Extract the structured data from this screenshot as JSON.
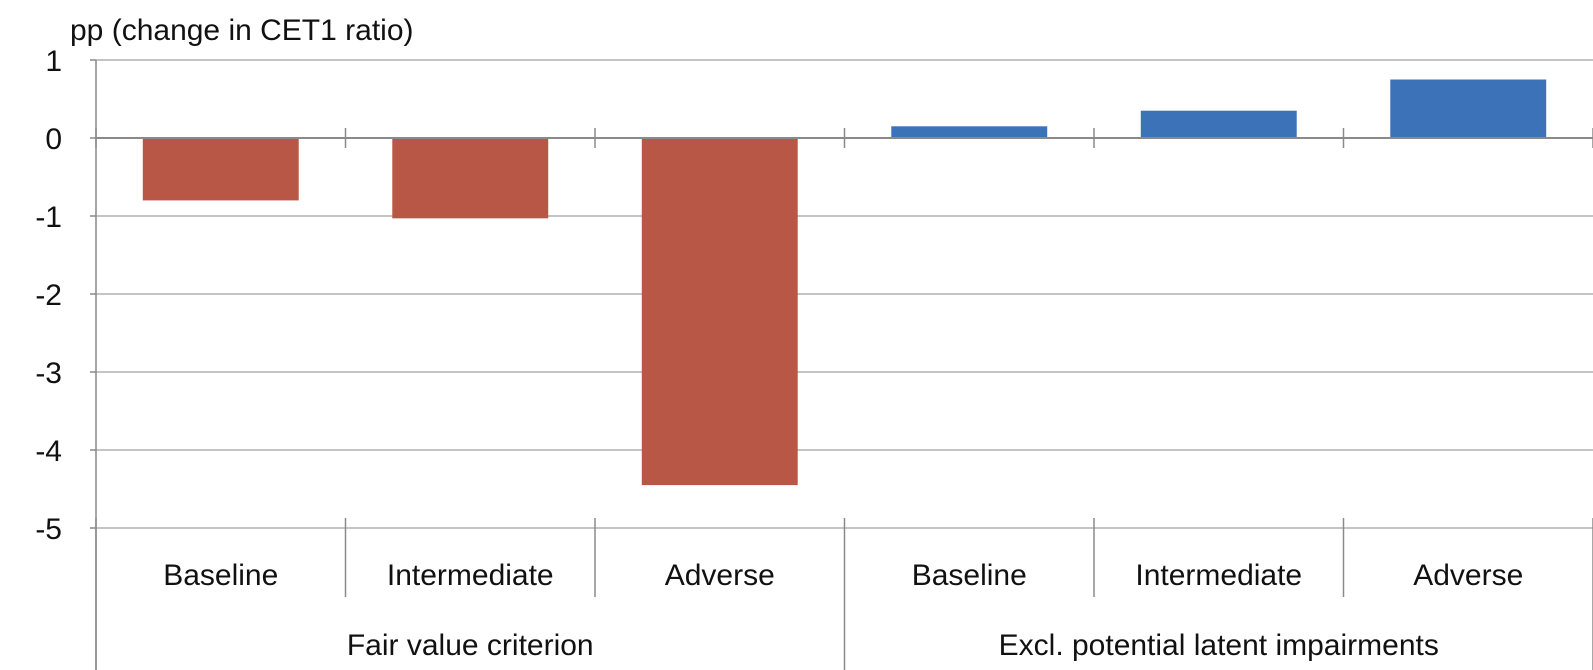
{
  "chart_data": {
    "type": "bar",
    "ylabel": "pp (change in CET1 ratio)",
    "ylim": [
      -5,
      1
    ],
    "yticks": [
      1,
      0,
      -1,
      -2,
      -3,
      -4,
      -5
    ],
    "grid": true,
    "legend": "none",
    "groups": [
      {
        "name": "Fair value criterion",
        "color": "#b85746",
        "categories": [
          "Baseline",
          "Intermediate",
          "Adverse"
        ],
        "values": [
          -0.8,
          -1.03,
          -4.45
        ]
      },
      {
        "name": "Excl. potential latent impairments",
        "color": "#3c73b8",
        "categories": [
          "Baseline",
          "Intermediate",
          "Adverse"
        ],
        "values": [
          0.15,
          0.35,
          0.75
        ]
      }
    ]
  }
}
